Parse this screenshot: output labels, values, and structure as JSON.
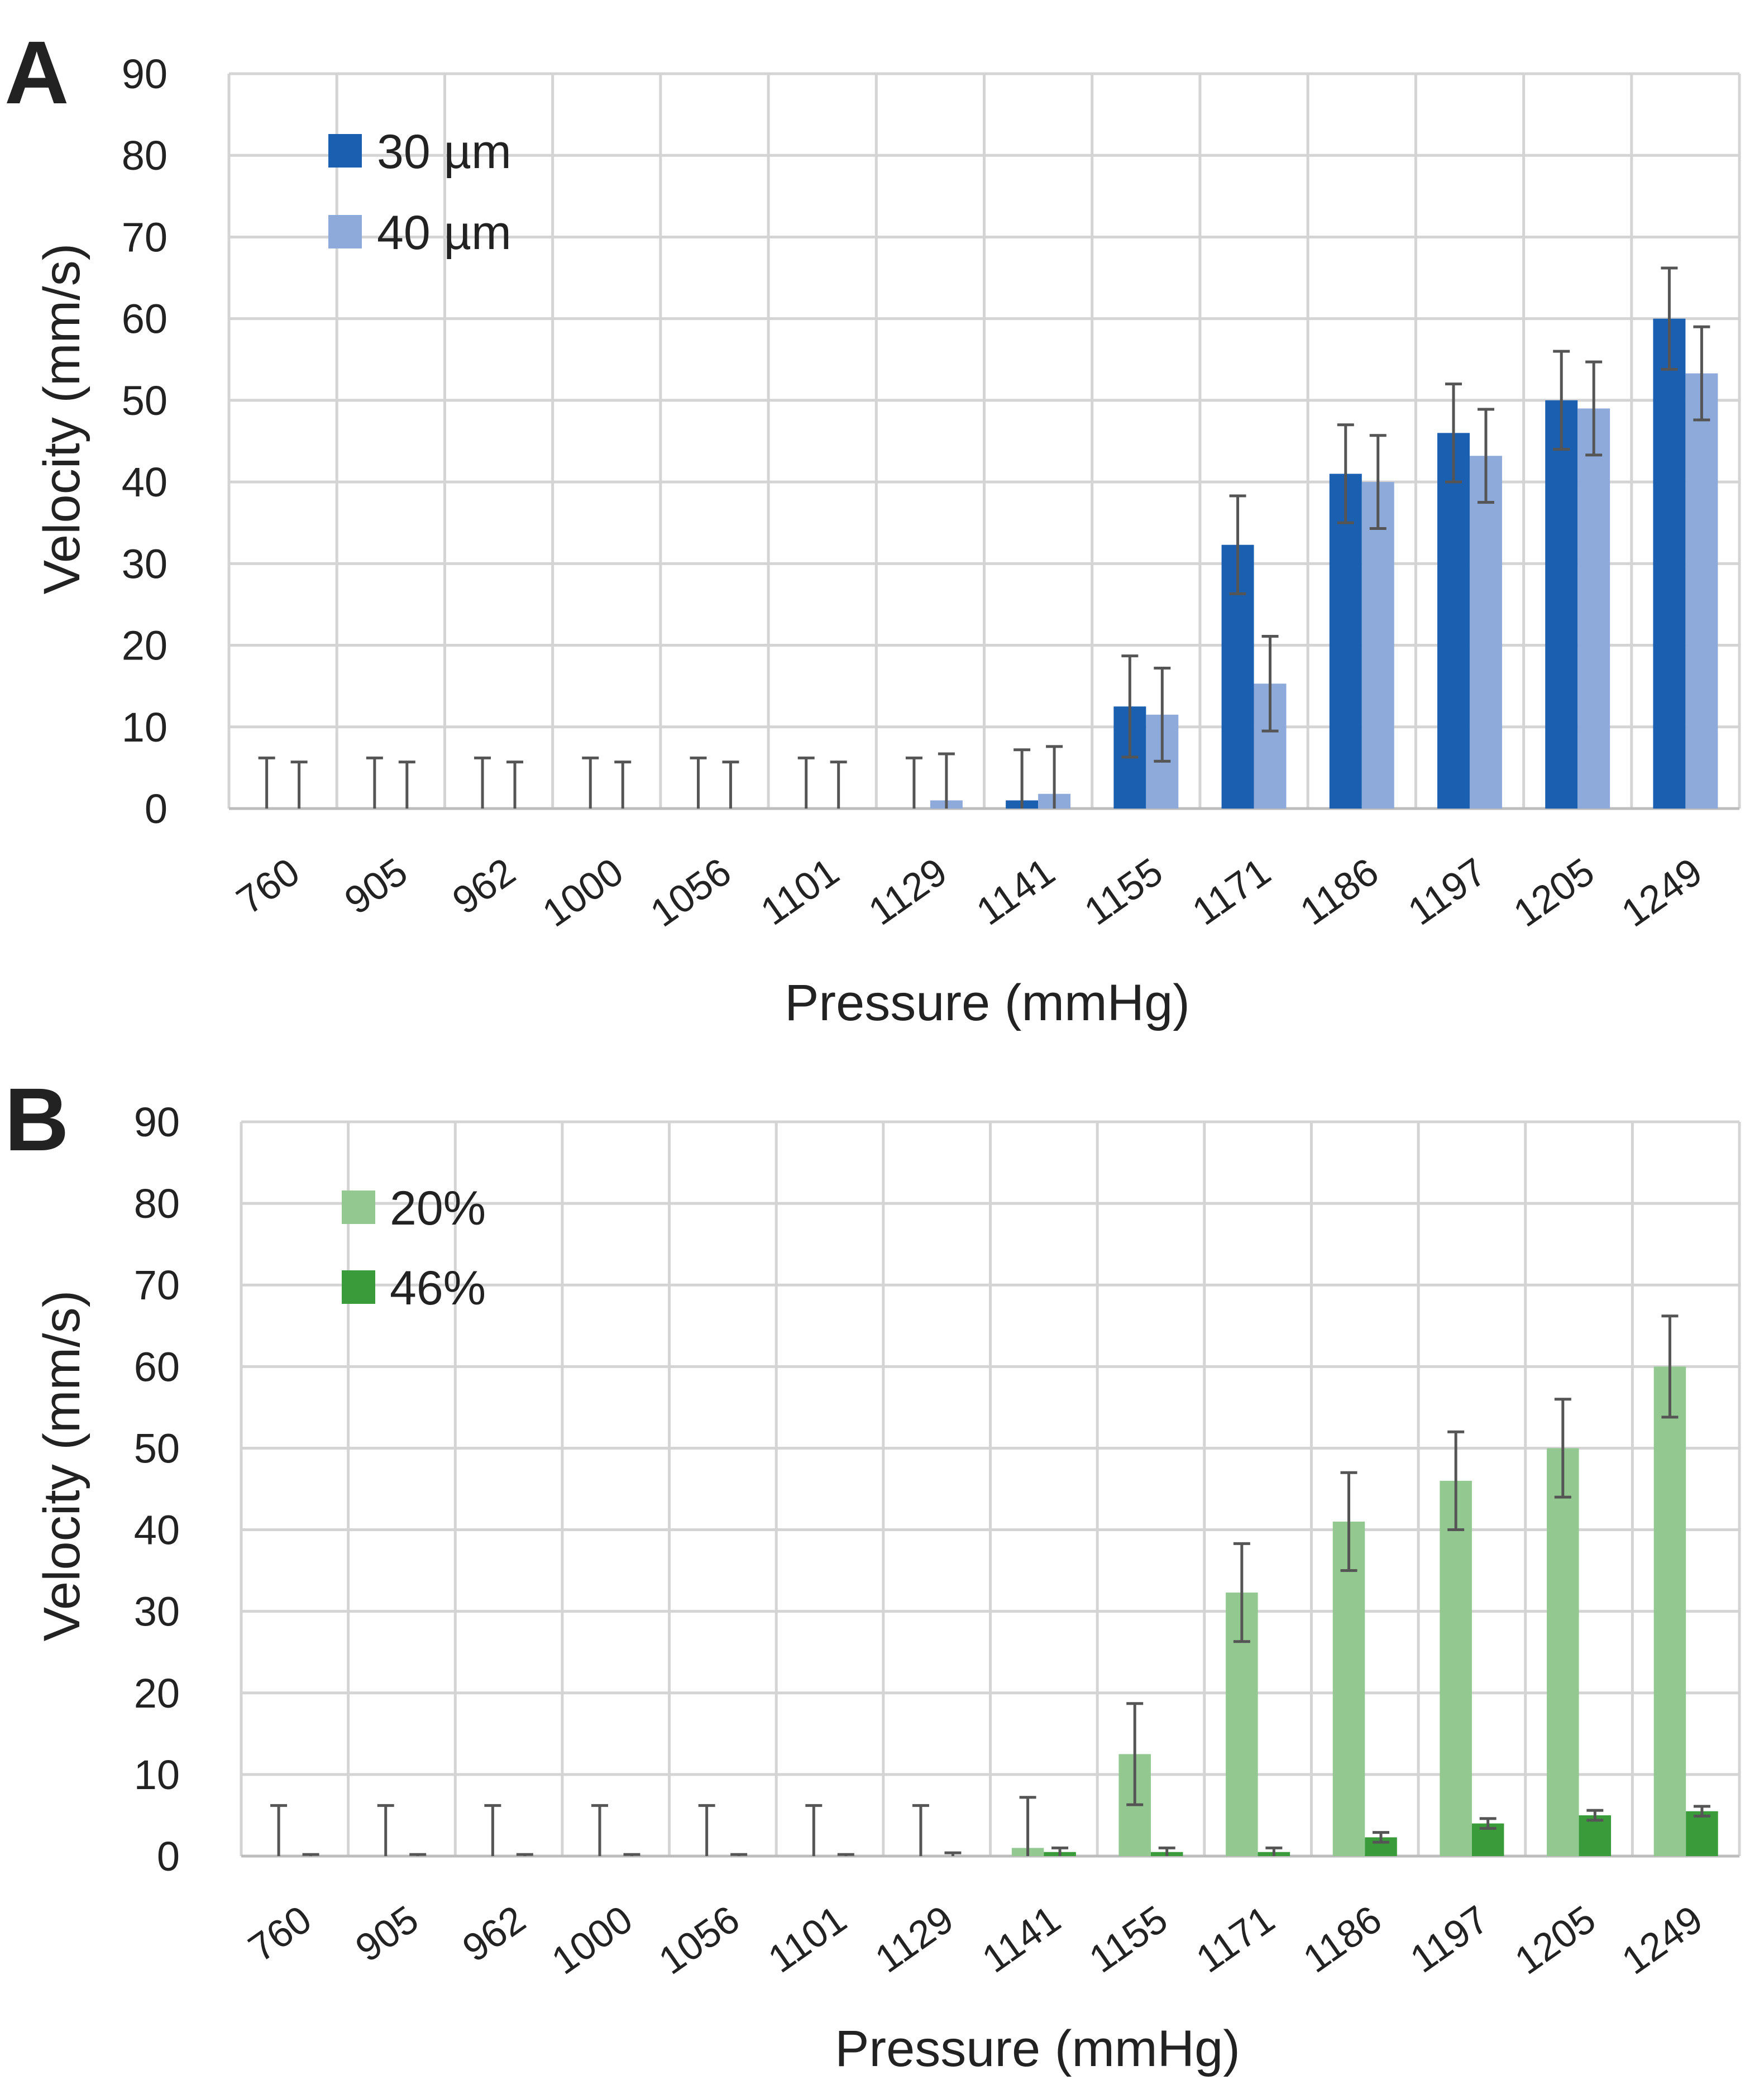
{
  "chart_data": [
    {
      "panel": "A",
      "type": "bar",
      "title": "",
      "xlabel": "Pressure (mmHg)",
      "ylabel": "Velocity (mm/s)",
      "ylim": [
        0,
        90
      ],
      "yticks": [
        0,
        10,
        20,
        30,
        40,
        50,
        60,
        70,
        80,
        90
      ],
      "grid": true,
      "legend_position": "top-left",
      "categories": [
        "760",
        "905",
        "962",
        "1000",
        "1056",
        "1101",
        "1129",
        "1141",
        "1155",
        "1171",
        "1186",
        "1197",
        "1205",
        "1249"
      ],
      "series": [
        {
          "name": "30 µm",
          "color": "#1a5fb0",
          "values": [
            0,
            0,
            0,
            0,
            0,
            0,
            0,
            1,
            12.5,
            32.3,
            41,
            46,
            50,
            60
          ],
          "error": [
            6.2,
            6.2,
            6.2,
            6.2,
            6.2,
            6.2,
            6.2,
            6.2,
            6.2,
            6.0,
            6.0,
            6.0,
            6.0,
            6.2
          ]
        },
        {
          "name": "40 µm",
          "color": "#8eaadb",
          "values": [
            0,
            0,
            0,
            0,
            0,
            0,
            1,
            1.8,
            11.5,
            15.3,
            40,
            43.2,
            49,
            53.3
          ],
          "error": [
            5.7,
            5.7,
            5.7,
            5.7,
            5.7,
            5.7,
            5.7,
            5.8,
            5.7,
            5.8,
            5.7,
            5.7,
            5.7,
            5.7
          ]
        }
      ]
    },
    {
      "panel": "B",
      "type": "bar",
      "title": "",
      "xlabel": "Pressure (mmHg)",
      "ylabel": "Velocity (mm/s)",
      "ylim": [
        0,
        90
      ],
      "yticks": [
        0,
        10,
        20,
        30,
        40,
        50,
        60,
        70,
        80,
        90
      ],
      "grid": true,
      "legend_position": "top-left",
      "categories": [
        "760",
        "905",
        "962",
        "1000",
        "1056",
        "1101",
        "1129",
        "1141",
        "1155",
        "1171",
        "1186",
        "1197",
        "1205",
        "1249"
      ],
      "series": [
        {
          "name": "20%",
          "color": "#93c991",
          "values": [
            0,
            0,
            0,
            0,
            0,
            0,
            0,
            1,
            12.5,
            32.3,
            41,
            46,
            50,
            60
          ],
          "error": [
            6.2,
            6.2,
            6.2,
            6.2,
            6.2,
            6.2,
            6.2,
            6.2,
            6.2,
            6.0,
            6.0,
            6.0,
            6.0,
            6.2
          ]
        },
        {
          "name": "46%",
          "color": "#3a9b3a",
          "values": [
            0,
            0,
            0,
            0,
            0,
            0,
            0,
            0.5,
            0.5,
            0.5,
            2.3,
            4,
            5,
            5.5
          ],
          "error": [
            0.2,
            0.2,
            0.2,
            0.2,
            0.2,
            0.2,
            0.4,
            0.5,
            0.5,
            0.5,
            0.6,
            0.6,
            0.6,
            0.6
          ]
        }
      ]
    }
  ]
}
